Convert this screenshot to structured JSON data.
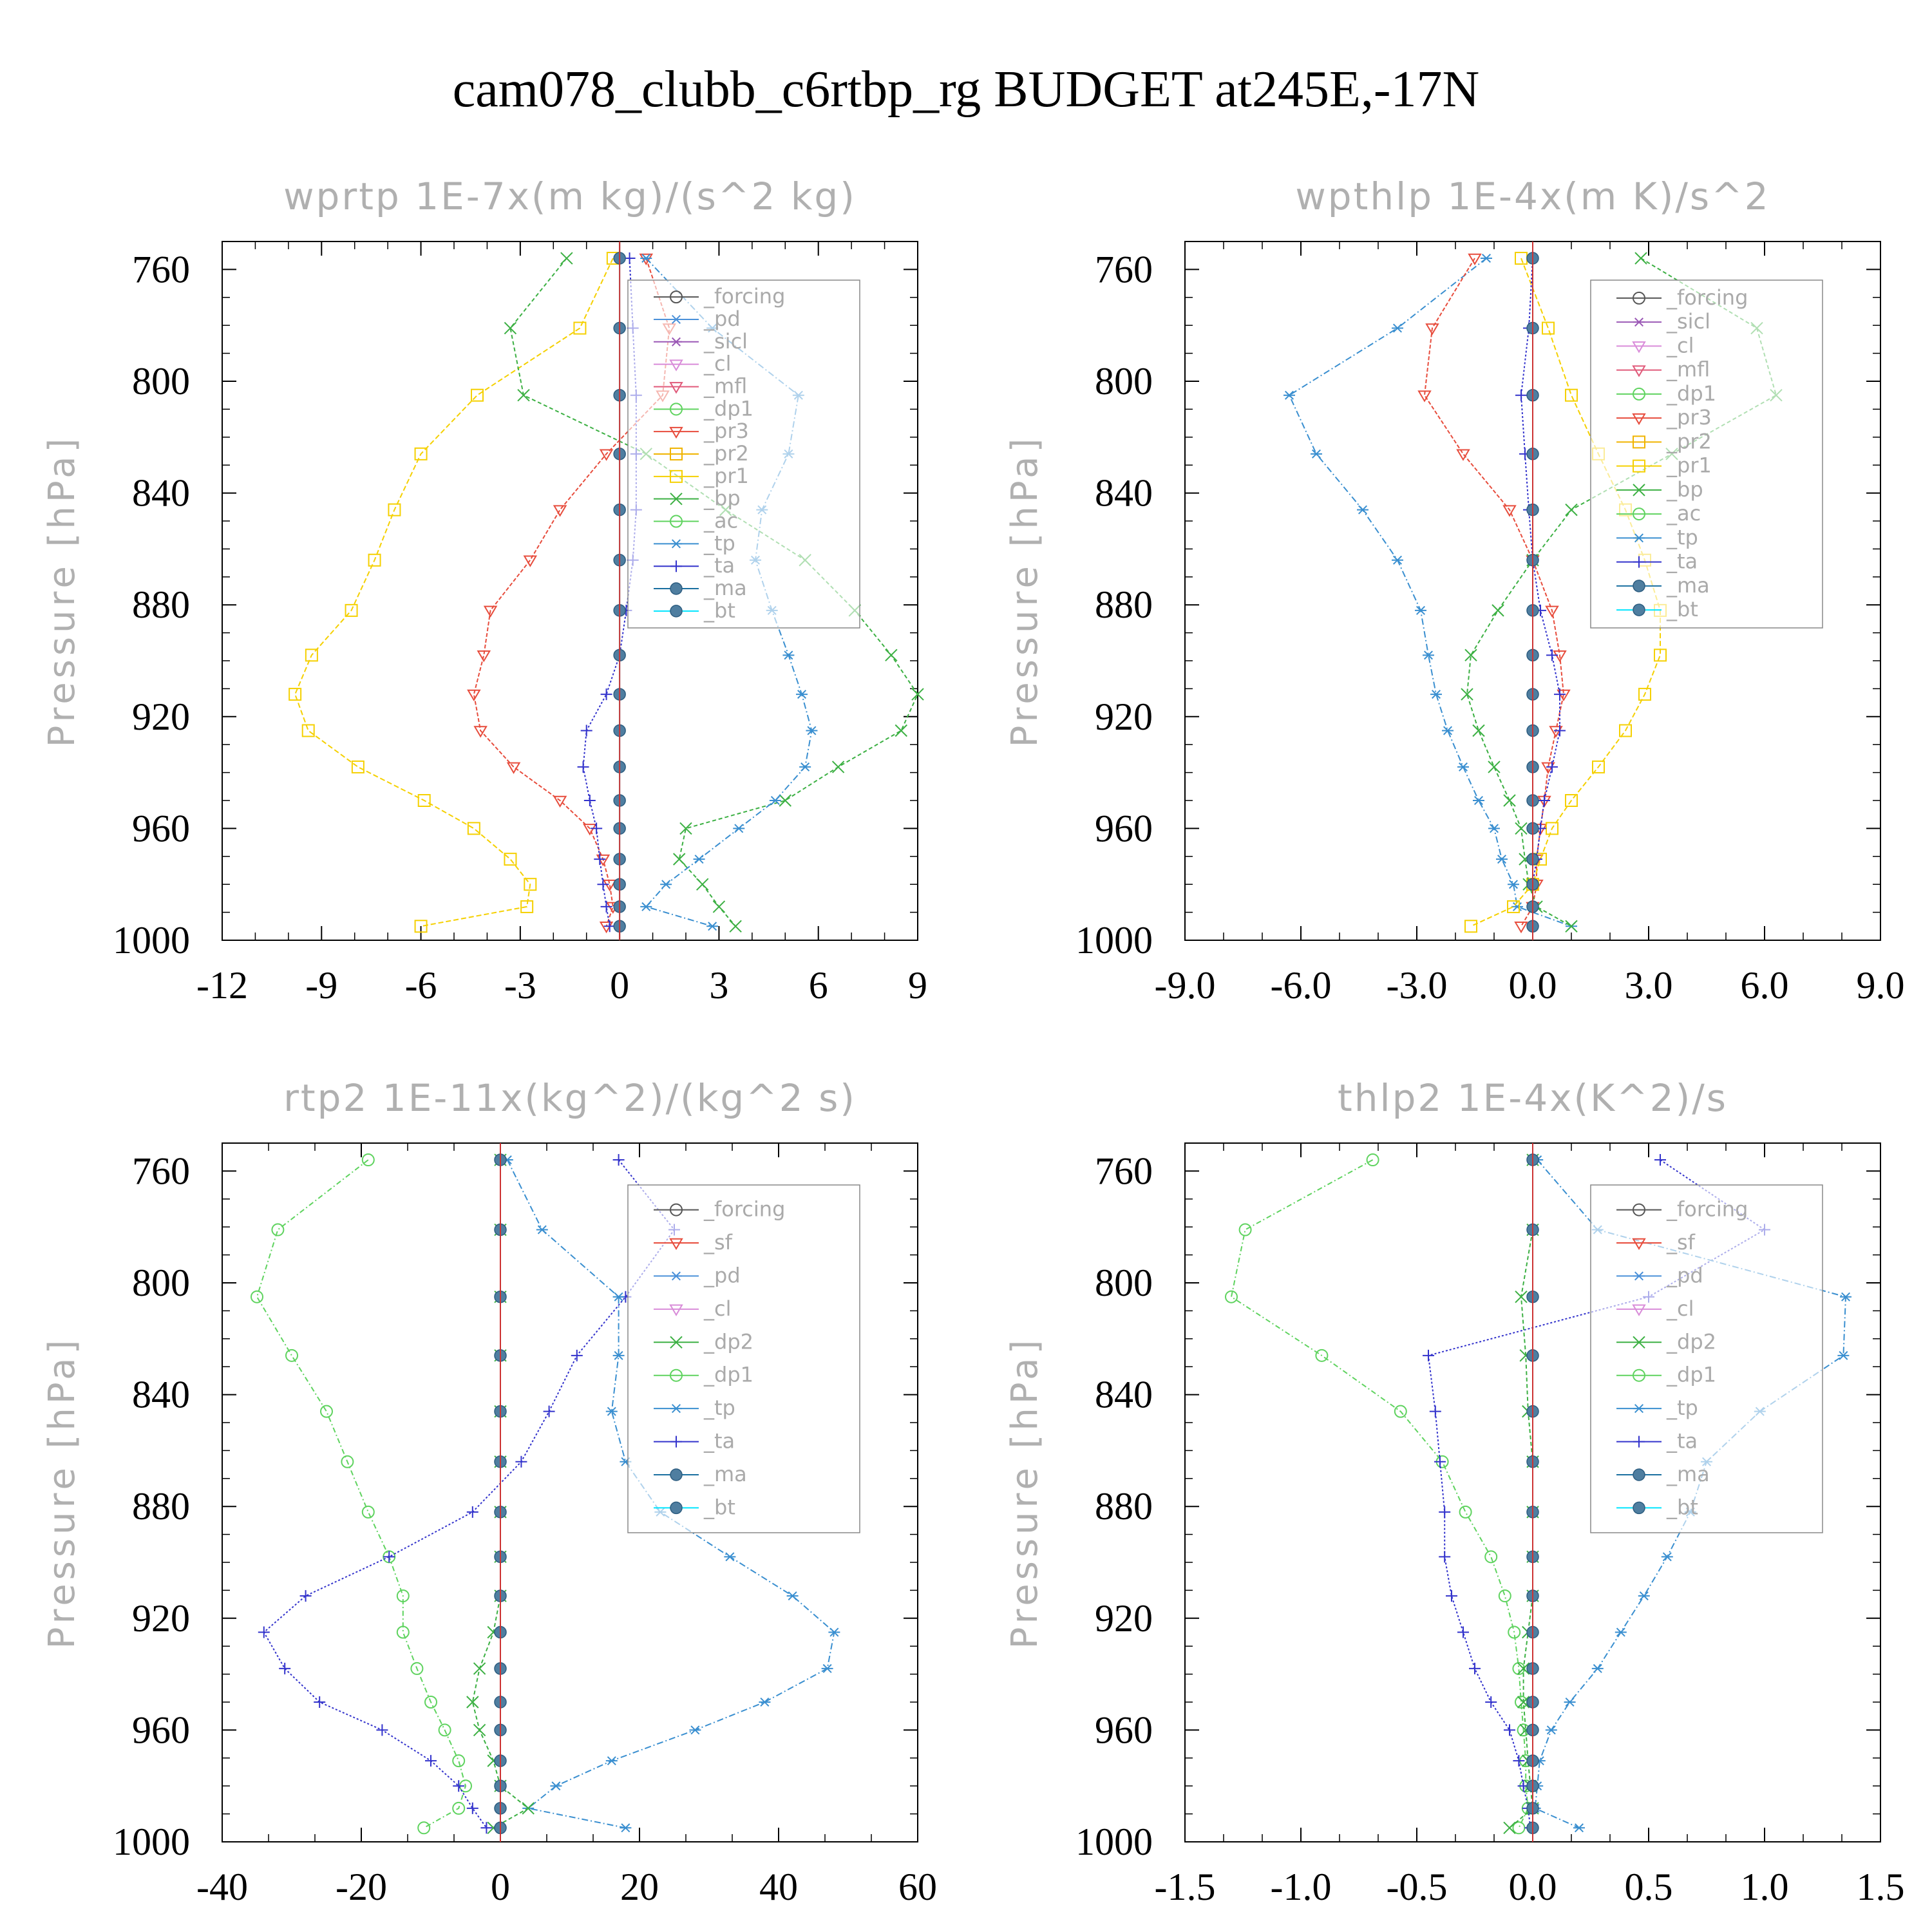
{
  "title": "cam078_clubb_c6rtbp_rg  BUDGET at245E,-17N",
  "colors": {
    "forcing": "#555555",
    "pd": "#4a90d9",
    "sicl": "#9b59b6",
    "cl": "#d98cd9",
    "mfl": "#e05a7a",
    "dp1": "#e67e22",
    "pr3": "#e74c3c",
    "pr2": "#f0b400",
    "pr1": "#f5d000",
    "bp": "#3cb043",
    "ac": "#5fd35f",
    "tp": "#3a8fd0",
    "ta": "#3333cc",
    "ma": "#1a6fa0",
    "bt": "#00e5ff",
    "sf": "#e74c3c",
    "dp2": "#3cb043",
    "axis": "#000000",
    "title_gray": "#b0b0b0"
  },
  "chart_data": [
    {
      "type": "line",
      "title": "wprtp  1E-7x(m kg)/(s^2 kg)",
      "ylabel": "Pressure [hPa]",
      "ylim": [
        1000,
        750
      ],
      "xlim": [
        -12,
        9
      ],
      "xticks": [
        "-12",
        "-9",
        "-6",
        "-3",
        "0",
        "3",
        "6",
        "9"
      ],
      "yticks": [
        "760",
        "800",
        "840",
        "880",
        "920",
        "960",
        "1000"
      ],
      "pressure": [
        756,
        781,
        805,
        826,
        846,
        864,
        882,
        898,
        912,
        925,
        938,
        950,
        960,
        971,
        980,
        988,
        995
      ],
      "legend": [
        "_forcing",
        "_pd",
        "_sicl",
        "_cl",
        "_mfl",
        "_dp1",
        "_pr3",
        "_pr2",
        "_pr1",
        "_bp",
        "_ac",
        "_tp",
        "_ta",
        "_ma",
        "_bt"
      ],
      "series": [
        {
          "name": "_pr1",
          "key": "pr1",
          "dash": "8,4",
          "marker": "square",
          "values": [
            -0.2,
            -1.2,
            -4.3,
            -6.0,
            -6.8,
            -7.4,
            -8.1,
            -9.3,
            -9.8,
            -9.4,
            -7.9,
            -5.9,
            -4.4,
            -3.3,
            -2.7,
            -2.8,
            -6.0
          ]
        },
        {
          "name": "_pr3",
          "key": "pr3",
          "dash": "6,3",
          "marker": "tri-down",
          "values": [
            0.8,
            1.5,
            1.3,
            -0.4,
            -1.8,
            -2.7,
            -3.9,
            -4.1,
            -4.4,
            -4.2,
            -3.2,
            -1.8,
            -0.9,
            -0.5,
            -0.3,
            -0.2,
            -0.4
          ]
        },
        {
          "name": "_bp",
          "key": "bp",
          "dash": "6,4",
          "marker": "x",
          "values": [
            -1.6,
            -3.3,
            -2.9,
            0.8,
            3.2,
            5.6,
            7.1,
            8.2,
            9.0,
            8.5,
            6.6,
            5.0,
            2.0,
            1.8,
            2.5,
            3.0,
            3.5
          ]
        },
        {
          "name": "_tp",
          "key": "tp",
          "dash": "10,4,2,4",
          "marker": "star",
          "values": [
            0.8,
            2.8,
            5.4,
            5.1,
            4.3,
            4.1,
            4.6,
            5.1,
            5.5,
            5.8,
            5.6,
            4.7,
            3.6,
            2.4,
            1.4,
            0.8,
            2.8
          ]
        },
        {
          "name": "_ta",
          "key": "ta",
          "dash": "3,3",
          "marker": "plus",
          "values": [
            0.3,
            0.4,
            0.5,
            0.5,
            0.5,
            0.4,
            0.2,
            0.0,
            -0.4,
            -1.0,
            -1.1,
            -0.9,
            -0.7,
            -0.6,
            -0.5,
            -0.4,
            -0.3
          ]
        },
        {
          "name": "_bt",
          "key": "bt",
          "dash": "",
          "marker": "dot",
          "values": [
            0,
            0,
            0,
            0,
            0,
            0,
            0,
            0,
            0,
            0,
            0,
            0,
            0,
            0,
            0,
            0,
            0
          ]
        }
      ]
    },
    {
      "type": "line",
      "title": "wpthlp  1E-4x(m K)/s^2",
      "ylabel": "Pressure [hPa]",
      "ylim": [
        1000,
        750
      ],
      "xlim": [
        -9,
        9
      ],
      "xticks": [
        "-9.0",
        "-6.0",
        "-3.0",
        "0.0",
        "3.0",
        "6.0",
        "9.0"
      ],
      "yticks": [
        "760",
        "800",
        "840",
        "880",
        "920",
        "960",
        "1000"
      ],
      "pressure": [
        756,
        781,
        805,
        826,
        846,
        864,
        882,
        898,
        912,
        925,
        938,
        950,
        960,
        971,
        980,
        988,
        995
      ],
      "legend": [
        "_forcing",
        "_sicl",
        "_cl",
        "_mfl",
        "_dp1",
        "_pr3",
        "_pr2",
        "_pr1",
        "_bp",
        "_ac",
        "_tp",
        "_ta",
        "_ma",
        "_bt"
      ],
      "series": [
        {
          "name": "_tp",
          "key": "tp",
          "dash": "10,4,2,4",
          "marker": "star",
          "values": [
            -1.2,
            -3.5,
            -6.3,
            -5.6,
            -4.4,
            -3.5,
            -2.9,
            -2.7,
            -2.5,
            -2.2,
            -1.8,
            -1.4,
            -1.0,
            -0.8,
            -0.5,
            -0.4,
            1.0
          ]
        },
        {
          "name": "_pr3",
          "key": "pr3",
          "dash": "6,3",
          "marker": "tri-down",
          "values": [
            -1.5,
            -2.6,
            -2.8,
            -1.8,
            -0.6,
            0.0,
            0.5,
            0.7,
            0.8,
            0.6,
            0.4,
            0.3,
            0.2,
            0.1,
            0.1,
            0.0,
            -0.3
          ]
        },
        {
          "name": "_pr1",
          "key": "pr1",
          "dash": "8,4",
          "marker": "square",
          "values": [
            -0.3,
            0.4,
            1.0,
            1.7,
            2.4,
            2.9,
            3.3,
            3.3,
            2.9,
            2.4,
            1.7,
            1.0,
            0.5,
            0.2,
            0.0,
            -0.5,
            -1.6
          ]
        },
        {
          "name": "_bp",
          "key": "bp",
          "dash": "6,4",
          "marker": "x",
          "values": [
            2.8,
            5.8,
            6.3,
            3.6,
            1.0,
            0.0,
            -0.9,
            -1.6,
            -1.7,
            -1.4,
            -1.0,
            -0.6,
            -0.3,
            -0.2,
            -0.1,
            0.1,
            1.0
          ]
        },
        {
          "name": "_ta",
          "key": "ta",
          "dash": "3,3",
          "marker": "plus",
          "values": [
            0.0,
            -0.1,
            -0.3,
            -0.2,
            -0.1,
            0.0,
            0.2,
            0.5,
            0.7,
            0.7,
            0.5,
            0.3,
            0.2,
            0.1,
            0.0,
            0.0,
            0.0
          ]
        },
        {
          "name": "_bt",
          "key": "bt",
          "dash": "",
          "marker": "dot",
          "values": [
            0,
            0,
            0,
            0,
            0,
            0,
            0,
            0,
            0,
            0,
            0,
            0,
            0,
            0,
            0,
            0,
            0
          ]
        }
      ]
    },
    {
      "type": "line",
      "title": "rtp2  1E-11x(kg^2)/(kg^2 s)",
      "ylabel": "Pressure [hPa]",
      "ylim": [
        1000,
        750
      ],
      "xlim": [
        -40,
        60
      ],
      "xticks": [
        "-40",
        "-20",
        "0",
        "20",
        "40",
        "60"
      ],
      "yticks": [
        "760",
        "800",
        "840",
        "880",
        "920",
        "960",
        "1000"
      ],
      "pressure": [
        756,
        781,
        805,
        826,
        846,
        864,
        882,
        898,
        912,
        925,
        938,
        950,
        960,
        971,
        980,
        988,
        995
      ],
      "legend": [
        "_forcing",
        "_sf",
        "_pd",
        "_cl",
        "_dp2",
        "_dp1",
        "_tp",
        "_ta",
        "_ma",
        "_bt"
      ],
      "series": [
        {
          "name": "_dp1",
          "key": "ac",
          "dash": "8,4,2,4",
          "marker": "circle",
          "values": [
            -19,
            -32,
            -35,
            -30,
            -25,
            -22,
            -19,
            -16,
            -14,
            -14,
            -12,
            -10,
            -8,
            -6,
            -5,
            -6,
            -11
          ]
        },
        {
          "name": "_ta",
          "key": "ta",
          "dash": "3,3",
          "marker": "plus",
          "values": [
            17,
            25,
            18,
            11,
            7,
            3,
            -4,
            -16,
            -28,
            -34,
            -31,
            -26,
            -17,
            -10,
            -6,
            -4,
            -2
          ]
        },
        {
          "name": "_tp",
          "key": "tp",
          "dash": "10,4,2,4",
          "marker": "star",
          "values": [
            1,
            6,
            17,
            17,
            16,
            18,
            23,
            33,
            42,
            48,
            47,
            38,
            28,
            16,
            8,
            4,
            18
          ]
        },
        {
          "name": "_dp2",
          "key": "dp2",
          "dash": "6,4",
          "marker": "x",
          "values": [
            0,
            0,
            0,
            0,
            0,
            0,
            0,
            0,
            0,
            -1,
            -3,
            -4,
            -3,
            -1,
            0,
            4,
            -1
          ]
        },
        {
          "name": "_bt",
          "key": "bt",
          "dash": "",
          "marker": "dot",
          "values": [
            0,
            0,
            0,
            0,
            0,
            0,
            0,
            0,
            0,
            0,
            0,
            0,
            0,
            0,
            0,
            0,
            0
          ]
        }
      ]
    },
    {
      "type": "line",
      "title": "thlp2  1E-4x(K^2)/s",
      "ylabel": "Pressure [hPa]",
      "ylim": [
        1000,
        750
      ],
      "xlim": [
        -1.5,
        1.5
      ],
      "xticks": [
        "-1.5",
        "-1.0",
        "-0.5",
        "0.0",
        "0.5",
        "1.0",
        "1.5"
      ],
      "yticks": [
        "760",
        "800",
        "840",
        "880",
        "920",
        "960",
        "1000"
      ],
      "pressure": [
        756,
        781,
        805,
        826,
        846,
        864,
        882,
        898,
        912,
        925,
        938,
        950,
        960,
        971,
        980,
        988,
        995
      ],
      "legend": [
        "_forcing",
        "_sf",
        "_pd",
        "_cl",
        "_dp2",
        "_dp1",
        "_tp",
        "_ta",
        "_ma",
        "_bt"
      ],
      "series": [
        {
          "name": "_dp1",
          "key": "ac",
          "dash": "8,4,2,4",
          "marker": "circle",
          "values": [
            -0.69,
            -1.24,
            -1.3,
            -0.91,
            -0.57,
            -0.39,
            -0.29,
            -0.18,
            -0.12,
            -0.08,
            -0.06,
            -0.05,
            -0.04,
            -0.03,
            -0.03,
            -0.02,
            -0.06
          ]
        },
        {
          "name": "_ta",
          "key": "ta",
          "dash": "3,3",
          "marker": "plus",
          "values": [
            0.55,
            1.0,
            0.5,
            -0.45,
            -0.42,
            -0.4,
            -0.38,
            -0.38,
            -0.35,
            -0.3,
            -0.25,
            -0.18,
            -0.1,
            -0.06,
            -0.04,
            -0.02,
            -0.01
          ]
        },
        {
          "name": "_tp",
          "key": "tp",
          "dash": "10,4,2,4",
          "marker": "star",
          "values": [
            0.02,
            0.28,
            1.35,
            1.34,
            0.98,
            0.75,
            0.68,
            0.58,
            0.48,
            0.38,
            0.28,
            0.16,
            0.08,
            0.03,
            0.02,
            0.01,
            0.2
          ]
        },
        {
          "name": "_dp2",
          "key": "dp2",
          "dash": "6,4",
          "marker": "x",
          "values": [
            0,
            0,
            -0.05,
            -0.03,
            -0.02,
            0,
            0,
            0,
            0,
            -0.02,
            -0.04,
            -0.04,
            -0.03,
            -0.02,
            -0.01,
            0,
            -0.1
          ]
        },
        {
          "name": "_bt",
          "key": "bt",
          "dash": "",
          "marker": "dot",
          "values": [
            0,
            0,
            0,
            0,
            0,
            0,
            0,
            0,
            0,
            0,
            0,
            0,
            0,
            0,
            0,
            0,
            0
          ]
        }
      ]
    }
  ]
}
